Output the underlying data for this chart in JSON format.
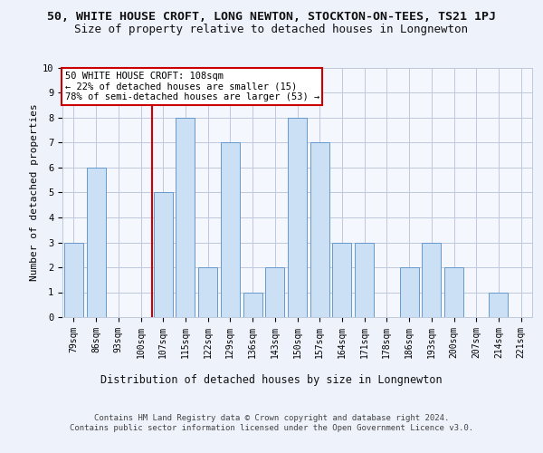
{
  "title1": "50, WHITE HOUSE CROFT, LONG NEWTON, STOCKTON-ON-TEES, TS21 1PJ",
  "title2": "Size of property relative to detached houses in Longnewton",
  "xlabel": "Distribution of detached houses by size in Longnewton",
  "ylabel": "Number of detached properties",
  "categories": [
    "79sqm",
    "86sqm",
    "93sqm",
    "100sqm",
    "107sqm",
    "115sqm",
    "122sqm",
    "129sqm",
    "136sqm",
    "143sqm",
    "150sqm",
    "157sqm",
    "164sqm",
    "171sqm",
    "178sqm",
    "186sqm",
    "193sqm",
    "200sqm",
    "207sqm",
    "214sqm",
    "221sqm"
  ],
  "values": [
    3,
    6,
    0,
    0,
    5,
    8,
    2,
    7,
    1,
    2,
    8,
    7,
    3,
    3,
    0,
    2,
    3,
    2,
    0,
    1,
    0
  ],
  "bar_color": "#cce0f5",
  "bar_edge_color": "#6699cc",
  "highlight_index": 4,
  "highlight_line_color": "#cc0000",
  "annotation_line1": "50 WHITE HOUSE CROFT: 108sqm",
  "annotation_line2": "← 22% of detached houses are smaller (15)",
  "annotation_line3": "78% of semi-detached houses are larger (53) →",
  "annotation_box_color": "#ffffff",
  "annotation_box_edge": "#cc0000",
  "ylim": [
    0,
    10
  ],
  "yticks": [
    0,
    1,
    2,
    3,
    4,
    5,
    6,
    7,
    8,
    9,
    10
  ],
  "footer": "Contains HM Land Registry data © Crown copyright and database right 2024.\nContains public sector information licensed under the Open Government Licence v3.0.",
  "bg_color": "#eef2fb",
  "plot_bg_color": "#f5f7ff",
  "grid_color": "#c0c8dc",
  "title1_fontsize": 9.5,
  "title2_fontsize": 9,
  "xlabel_fontsize": 8.5,
  "ylabel_fontsize": 8,
  "tick_fontsize": 7,
  "footer_fontsize": 6.5,
  "annotation_fontsize": 7.5
}
